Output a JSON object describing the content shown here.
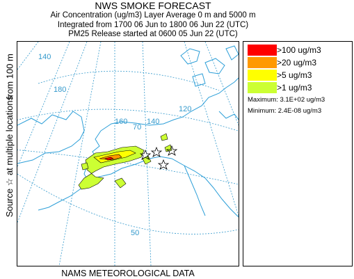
{
  "header": {
    "title": "NWS SMOKE FORECAST",
    "line1": "Air Concentration (ug/m3) Layer Average    0 m and  5000 m",
    "line2": "Integrated from 1700 06 Jun to 1800 06 Jun 22 (UTC)",
    "line3": "PM25 Release started at 0600 05 Jun 22 (UTC)"
  },
  "side": {
    "source": "Source ☆ at multiple locations",
    "height": "from  100 m"
  },
  "map": {
    "labels": [
      "140",
      "180",
      "160",
      "70",
      "140",
      "120",
      "50"
    ],
    "coast_color": "#2d9fd8",
    "grid_color": "#3399cc"
  },
  "legend": {
    "items": [
      {
        "label": ">100 ug/m3",
        "color": "#ff0000"
      },
      {
        "label": ">20 ug/m3",
        "color": "#ff9900"
      },
      {
        "label": ">5 ug/m3",
        "color": "#ffff00"
      },
      {
        "label": ">1 ug/m3",
        "color": "#ccff33"
      }
    ],
    "maximum": "Maximum: 3.1E+02 ug/m3",
    "minimum": "Minimum: 2.4E-08 ug/m3"
  },
  "footer": "NAMS METEOROLOGICAL DATA"
}
